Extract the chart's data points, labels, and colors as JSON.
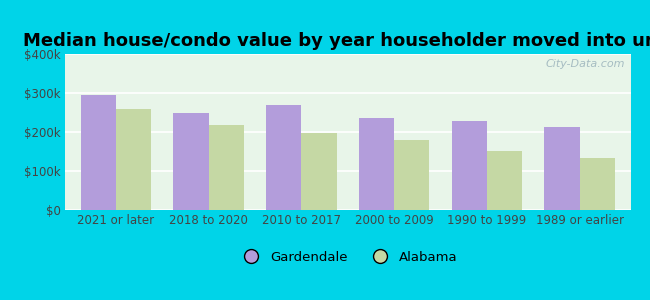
{
  "title": "Median house/condo value by year householder moved into unit",
  "categories": [
    "2021 or later",
    "2018 to 2020",
    "2010 to 2017",
    "2000 to 2009",
    "1990 to 1999",
    "1989 or earlier"
  ],
  "gardendale": [
    295000,
    248000,
    268000,
    237000,
    228000,
    213000
  ],
  "alabama": [
    260000,
    218000,
    197000,
    180000,
    152000,
    133000
  ],
  "gardendale_color": "#b39ddb",
  "alabama_color": "#c5d8a4",
  "background_outer": "#00d4e8",
  "background_inner_top": "#e8f8f0",
  "background_inner_bottom": "#f0faf0",
  "ylim": [
    0,
    400000
  ],
  "yticks": [
    0,
    100000,
    200000,
    300000,
    400000
  ],
  "ytick_labels": [
    "$0",
    "$100k",
    "$200k",
    "$300k",
    "$400k"
  ],
  "bar_width": 0.38,
  "legend_labels": [
    "Gardendale",
    "Alabama"
  ],
  "watermark": "City-Data.com",
  "title_fontsize": 13,
  "tick_fontsize": 8.5,
  "legend_fontsize": 9.5
}
